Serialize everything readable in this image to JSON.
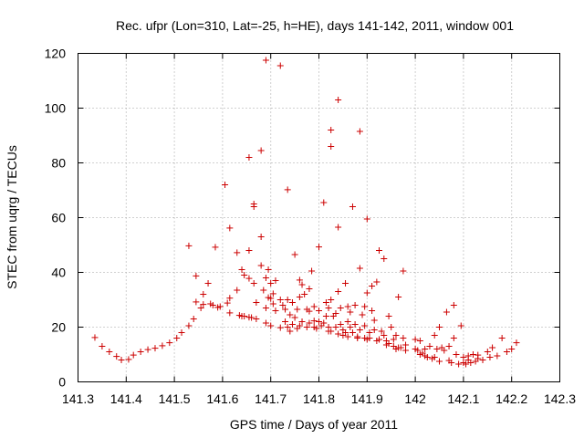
{
  "chart_data": {
    "type": "scatter",
    "title": "Rec. ufpr (Lon=310, Lat=-25, h=HE), days 141-142, 2011, window 001",
    "xlabel": "GPS time / Days of year 2011",
    "ylabel": "STEC from uqrg / TECUs",
    "xlim": [
      141.3,
      142.3
    ],
    "ylim": [
      0,
      120
    ],
    "xticks": [
      "141.3",
      "141.4",
      "141.5",
      "141.6",
      "141.7",
      "141.8",
      "141.9",
      "142",
      "142.1",
      "142.2",
      "142.3"
    ],
    "yticks": [
      "0",
      "20",
      "40",
      "60",
      "80",
      "100",
      "120"
    ],
    "grid": true,
    "marker": "+",
    "color": "#cc0000",
    "points": [
      [
        141.335,
        16.2
      ],
      [
        141.35,
        13.0
      ],
      [
        141.365,
        11.0
      ],
      [
        141.38,
        9.3
      ],
      [
        141.39,
        8.0
      ],
      [
        141.405,
        8.2
      ],
      [
        141.415,
        9.8
      ],
      [
        141.43,
        11.0
      ],
      [
        141.445,
        11.8
      ],
      [
        141.46,
        12.3
      ],
      [
        141.475,
        13.2
      ],
      [
        141.49,
        14.3
      ],
      [
        141.505,
        16.0
      ],
      [
        141.515,
        18.0
      ],
      [
        141.53,
        20.5
      ],
      [
        141.54,
        23.0
      ],
      [
        141.53,
        49.7
      ],
      [
        141.545,
        38.7
      ],
      [
        141.545,
        29.2
      ],
      [
        141.56,
        32.0
      ],
      [
        141.56,
        28.3
      ],
      [
        141.57,
        36.0
      ],
      [
        141.575,
        28.5
      ],
      [
        141.585,
        49.2
      ],
      [
        141.59,
        27.2
      ],
      [
        141.595,
        27.5
      ],
      [
        141.605,
        72.0
      ],
      [
        141.61,
        28.8
      ],
      [
        141.615,
        56.2
      ],
      [
        141.615,
        30.6
      ],
      [
        141.615,
        25.2
      ],
      [
        141.63,
        47.2
      ],
      [
        141.63,
        33.5
      ],
      [
        141.635,
        24.3
      ],
      [
        141.64,
        41.0
      ],
      [
        141.645,
        39.0
      ],
      [
        141.645,
        24.0
      ],
      [
        141.655,
        82.0
      ],
      [
        141.655,
        48.0
      ],
      [
        141.655,
        37.8
      ],
      [
        141.655,
        23.6
      ],
      [
        141.665,
        65.0
      ],
      [
        141.665,
        64.0
      ],
      [
        141.665,
        36.0
      ],
      [
        141.67,
        29.0
      ],
      [
        141.67,
        23.0
      ],
      [
        141.68,
        84.5
      ],
      [
        141.68,
        53.0
      ],
      [
        141.68,
        42.5
      ],
      [
        141.685,
        33.5
      ],
      [
        141.69,
        38.0
      ],
      [
        141.69,
        27.0
      ],
      [
        141.69,
        21.5
      ],
      [
        141.69,
        117.5
      ],
      [
        141.695,
        41.0
      ],
      [
        141.695,
        30.8
      ],
      [
        141.7,
        36.0
      ],
      [
        141.7,
        20.5
      ],
      [
        141.705,
        32.2
      ],
      [
        141.705,
        28.5
      ],
      [
        141.71,
        37.0
      ],
      [
        141.72,
        115.5
      ],
      [
        141.72,
        19.8
      ],
      [
        141.725,
        28.0
      ],
      [
        141.73,
        26.5
      ],
      [
        141.735,
        70.2
      ],
      [
        141.735,
        30.0
      ],
      [
        141.74,
        24.5
      ],
      [
        141.74,
        18.5
      ],
      [
        141.745,
        29.0
      ],
      [
        141.75,
        46.5
      ],
      [
        141.75,
        23.5
      ],
      [
        141.755,
        19.5
      ],
      [
        141.76,
        37.2
      ],
      [
        141.76,
        31.0
      ],
      [
        141.765,
        35.5
      ],
      [
        141.765,
        22.0
      ],
      [
        141.77,
        32.0
      ],
      [
        141.775,
        20.0
      ],
      [
        141.78,
        25.8
      ],
      [
        141.785,
        40.5
      ],
      [
        141.79,
        27.5
      ],
      [
        141.79,
        22.3
      ],
      [
        141.795,
        19.5
      ],
      [
        141.8,
        49.3
      ],
      [
        141.8,
        26.0
      ],
      [
        141.81,
        65.5
      ],
      [
        141.81,
        21.5
      ],
      [
        141.815,
        29.0
      ],
      [
        141.82,
        18.5
      ],
      [
        141.825,
        92.0
      ],
      [
        141.825,
        86.0
      ],
      [
        141.825,
        30.0
      ],
      [
        141.83,
        24.0
      ],
      [
        141.835,
        20.0
      ],
      [
        141.84,
        103.0
      ],
      [
        141.84,
        56.5
      ],
      [
        141.84,
        33.0
      ],
      [
        141.845,
        27.0
      ],
      [
        141.85,
        19.0
      ],
      [
        141.85,
        17.0
      ],
      [
        141.855,
        36.0
      ],
      [
        141.86,
        22.0
      ],
      [
        141.865,
        25.5
      ],
      [
        141.87,
        64.0
      ],
      [
        141.87,
        18.0
      ],
      [
        141.875,
        28.0
      ],
      [
        141.88,
        16.5
      ],
      [
        141.885,
        41.5
      ],
      [
        141.885,
        91.5
      ],
      [
        141.89,
        24.5
      ],
      [
        141.895,
        16.0
      ],
      [
        141.9,
        59.5
      ],
      [
        141.9,
        32.5
      ],
      [
        141.905,
        18.0
      ],
      [
        141.91,
        35.0
      ],
      [
        141.915,
        22.5
      ],
      [
        141.92,
        36.5
      ],
      [
        141.925,
        48.0
      ],
      [
        141.93,
        18.5
      ],
      [
        141.935,
        45.0
      ],
      [
        141.94,
        15.0
      ],
      [
        141.945,
        24.0
      ],
      [
        141.95,
        20.0
      ],
      [
        141.955,
        13.0
      ],
      [
        141.96,
        17.0
      ],
      [
        141.965,
        31.0
      ],
      [
        141.97,
        12.5
      ],
      [
        141.975,
        40.5
      ],
      [
        141.975,
        16.0
      ],
      [
        141.98,
        11.5
      ],
      [
        142.0,
        15.5
      ],
      [
        142.005,
        11.5
      ],
      [
        142.01,
        15.0
      ],
      [
        142.015,
        10.5
      ],
      [
        142.02,
        12.0
      ],
      [
        142.025,
        9.0
      ],
      [
        142.03,
        13.0
      ],
      [
        142.035,
        8.5
      ],
      [
        142.04,
        17.0
      ],
      [
        142.045,
        12.0
      ],
      [
        142.05,
        20.0
      ],
      [
        142.05,
        7.5
      ],
      [
        142.06,
        11.5
      ],
      [
        142.065,
        25.5
      ],
      [
        142.07,
        13.0
      ],
      [
        142.075,
        7.0
      ],
      [
        142.08,
        28.0
      ],
      [
        142.08,
        16.0
      ],
      [
        142.085,
        10.0
      ],
      [
        142.09,
        6.5
      ],
      [
        142.095,
        20.5
      ],
      [
        142.1,
        9.0
      ],
      [
        142.105,
        6.5
      ],
      [
        142.11,
        9.5
      ],
      [
        142.115,
        7.0
      ],
      [
        142.12,
        10.0
      ],
      [
        142.125,
        7.5
      ],
      [
        142.13,
        9.8
      ],
      [
        142.14,
        8.0
      ],
      [
        142.15,
        11.0
      ],
      [
        142.16,
        12.5
      ],
      [
        142.17,
        9.5
      ],
      [
        142.18,
        16.0
      ],
      [
        142.19,
        11.0
      ],
      [
        142.2,
        12.0
      ],
      [
        142.21,
        14.3
      ],
      [
        141.555,
        27.0
      ],
      [
        141.58,
        28.0
      ],
      [
        141.64,
        24.0
      ],
      [
        141.66,
        23.5
      ],
      [
        141.7,
        30.5
      ],
      [
        141.71,
        26.0
      ],
      [
        141.72,
        30.0
      ],
      [
        141.73,
        22.0
      ],
      [
        141.745,
        21.0
      ],
      [
        141.755,
        26.5
      ],
      [
        141.775,
        26.5
      ],
      [
        141.79,
        20.0
      ],
      [
        141.805,
        20.5
      ],
      [
        141.815,
        24.0
      ],
      [
        141.825,
        18.5
      ],
      [
        141.835,
        25.0
      ],
      [
        141.845,
        21.0
      ],
      [
        141.855,
        18.0
      ],
      [
        141.865,
        20.0
      ],
      [
        141.875,
        21.0
      ],
      [
        141.885,
        19.0
      ],
      [
        141.895,
        20.5
      ],
      [
        141.905,
        16.0
      ],
      [
        141.915,
        19.0
      ],
      [
        141.925,
        15.5
      ],
      [
        141.935,
        17.0
      ],
      [
        141.945,
        14.0
      ],
      [
        141.955,
        15.5
      ],
      [
        141.965,
        12.5
      ],
      [
        141.98,
        13.5
      ],
      [
        142.0,
        12.0
      ],
      [
        142.01,
        10.0
      ],
      [
        142.02,
        9.5
      ],
      [
        142.04,
        9.0
      ],
      [
        142.055,
        12.5
      ],
      [
        142.07,
        7.8
      ],
      [
        142.1,
        7.0
      ],
      [
        142.11,
        8.0
      ],
      [
        142.13,
        8.5
      ],
      [
        142.155,
        9.0
      ],
      [
        141.735,
        20.0
      ],
      [
        141.76,
        20.5
      ],
      [
        141.78,
        21.5
      ],
      [
        141.8,
        22.0
      ],
      [
        141.82,
        20.0
      ],
      [
        141.84,
        17.5
      ],
      [
        141.86,
        16.5
      ],
      [
        141.88,
        16.0
      ],
      [
        141.9,
        15.5
      ],
      [
        141.92,
        15.0
      ],
      [
        141.94,
        13.5
      ],
      [
        141.96,
        12.0
      ],
      [
        141.78,
        34.0
      ],
      [
        141.82,
        27.0
      ],
      [
        141.86,
        27.5
      ],
      [
        141.895,
        27.5
      ],
      [
        141.91,
        26.0
      ]
    ]
  }
}
